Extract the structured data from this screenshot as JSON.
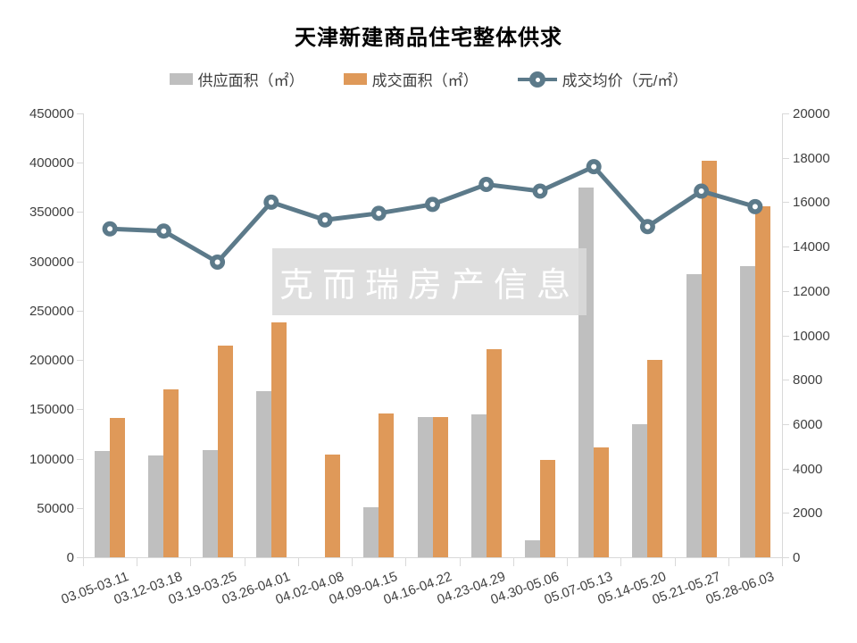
{
  "title": "天津新建商品住宅整体供求",
  "watermark": "克而瑞房产信息",
  "legend": [
    {
      "label": "供应面积（㎡）",
      "type": "bar",
      "color": "#BFBFBF"
    },
    {
      "label": "成交面积（㎡）",
      "type": "bar",
      "color": "#DF9959"
    },
    {
      "label": "成交均价（元/㎡）",
      "type": "line",
      "color": "#5C7A8A"
    }
  ],
  "chart_data": {
    "type": "bar",
    "subtype": "grouped-bars-with-line",
    "title": "天津新建商品住宅整体供求",
    "categories": [
      "03.05-03.11",
      "03.12-03.18",
      "03.19-03.25",
      "03.26-04.01",
      "04.02-04.08",
      "04.09-04.15",
      "04.16-04.22",
      "04.23-04.29",
      "04.30-05.06",
      "05.07-05.13",
      "05.14-05.20",
      "05.21-05.27",
      "05.28-06.03"
    ],
    "series": [
      {
        "name": "供应面积（㎡）",
        "type": "bar",
        "axis": "left",
        "color": "#BFBFBF",
        "values": [
          108000,
          103000,
          108500,
          168000,
          0,
          51000,
          142500,
          145000,
          17000,
          375000,
          135000,
          287000,
          295000
        ]
      },
      {
        "name": "成交面积（㎡）",
        "type": "bar",
        "axis": "left",
        "color": "#DF9959",
        "values": [
          141000,
          170000,
          215000,
          238000,
          104000,
          146000,
          142000,
          211000,
          99000,
          111000,
          200000,
          402000,
          356000
        ]
      },
      {
        "name": "成交均价（元/㎡）",
        "type": "line",
        "axis": "right",
        "color": "#5C7A8A",
        "values": [
          14800,
          14700,
          13300,
          16000,
          15200,
          15500,
          15900,
          16800,
          16500,
          17600,
          14900,
          16500,
          15800
        ]
      }
    ],
    "left_axis": {
      "min": 0,
      "max": 450000,
      "step": 50000
    },
    "right_axis": {
      "min": 0,
      "max": 20000,
      "step": 2000
    },
    "grid": false,
    "legend_position": "top",
    "x_label_rotation_deg": -20
  }
}
